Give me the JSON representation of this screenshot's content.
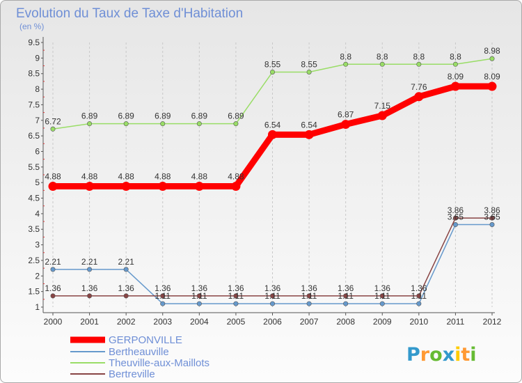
{
  "chart_data": {
    "type": "line",
    "title": "Evolution du Taux de Taxe d'Habitation",
    "subtitle": "(en %)",
    "x": [
      "2000",
      "2001",
      "2002",
      "2003",
      "2004",
      "2005",
      "2006",
      "2007",
      "2008",
      "2009",
      "2010",
      "2011",
      "2012"
    ],
    "ylim": [
      1,
      9.5
    ],
    "yticks": [
      "1",
      "1.5",
      "2",
      "2.5",
      "3",
      "3.5",
      "4",
      "4.5",
      "5",
      "5.5",
      "6",
      "6.5",
      "7",
      "7.5",
      "8",
      "8.5",
      "9",
      "9.5"
    ],
    "grid": "dashed-vertical",
    "legend_position": "bottom-left",
    "series": [
      {
        "name": "GERPONVILLE",
        "color": "#ff0000",
        "values": [
          4.88,
          4.88,
          4.88,
          4.88,
          4.88,
          4.88,
          6.54,
          6.54,
          6.87,
          7.15,
          7.76,
          8.09,
          8.09
        ],
        "labels": [
          "4.88",
          "4.88",
          "4.88",
          "4.88",
          "4.88",
          "4.88",
          "6.54",
          "6.54",
          "6.87",
          "7.15",
          "7.76",
          "8.09",
          "8.09"
        ]
      },
      {
        "name": "Bertheauville",
        "color": "#6699cc",
        "values": [
          2.21,
          2.21,
          2.21,
          1.11,
          1.11,
          1.11,
          1.11,
          1.11,
          1.11,
          1.11,
          1.11,
          3.65,
          3.65
        ],
        "labels": [
          "2.21",
          "2.21",
          "2.21",
          "1.11",
          "1.11",
          "1.11",
          "1.11",
          "1.11",
          "1.11",
          "1.11",
          "1.11",
          "3.65",
          "3.65"
        ]
      },
      {
        "name": "Theuville-aux-Maillots",
        "color": "#99dd66",
        "values": [
          6.72,
          6.89,
          6.89,
          6.89,
          6.89,
          6.89,
          8.55,
          8.55,
          8.8,
          8.8,
          8.8,
          8.8,
          8.98
        ],
        "labels": [
          "6.72",
          "6.89",
          "6.89",
          "6.89",
          "6.89",
          "6.89",
          "8.55",
          "8.55",
          "8.8",
          "8.8",
          "8.8",
          "8.8",
          "8.98"
        ]
      },
      {
        "name": "Bertreville",
        "color": "#884444",
        "values": [
          1.36,
          1.36,
          1.36,
          1.36,
          1.36,
          1.36,
          1.36,
          1.36,
          1.36,
          1.36,
          1.36,
          3.86,
          3.86
        ],
        "labels": [
          "1.36",
          "1.36",
          "1.36",
          "1.36",
          "1.36",
          "1.36",
          "1.36",
          "1.36",
          "1.36",
          "1.36",
          "1.36",
          "3.86",
          "3.86"
        ]
      }
    ]
  },
  "brand": {
    "letters": [
      "P",
      "r",
      "o",
      "x",
      "i",
      "t",
      "i"
    ],
    "colors": [
      "#3399cc",
      "#ff9933",
      "#66bb33",
      "#3399cc",
      "#ffcc00",
      "#ff9933",
      "#66bb33"
    ]
  }
}
